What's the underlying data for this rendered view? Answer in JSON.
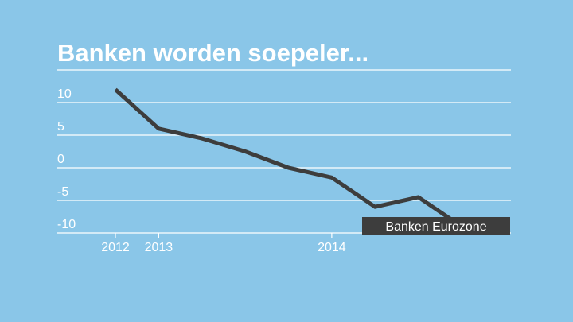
{
  "colors": {
    "background": "#8ac6e8",
    "grid": "#ffffff",
    "line": "#3d3d3d",
    "legend_box": "#3d3d3d",
    "text": "#ffffff"
  },
  "chart_data": {
    "type": "line",
    "title": "Banken worden soepeler...",
    "xlabel": "",
    "ylabel": "",
    "ylim": [
      -10,
      15
    ],
    "y_ticks": [
      10,
      5,
      0,
      -5,
      -10
    ],
    "y_tick_labels": [
      "10",
      "5",
      "0",
      "-5",
      "-10"
    ],
    "x_tick_labels": [
      "2012",
      "2013",
      "2014"
    ],
    "x_tick_positions": [
      0,
      1,
      5
    ],
    "grid": true,
    "legend_position": "bottom-right",
    "series": [
      {
        "name": "Banken Eurozone",
        "x": [
          0,
          1,
          2,
          3,
          4,
          5,
          6,
          7,
          8
        ],
        "y": [
          12,
          6,
          4.5,
          2.5,
          0,
          -1.5,
          -6,
          -4.5,
          -9
        ]
      }
    ]
  }
}
